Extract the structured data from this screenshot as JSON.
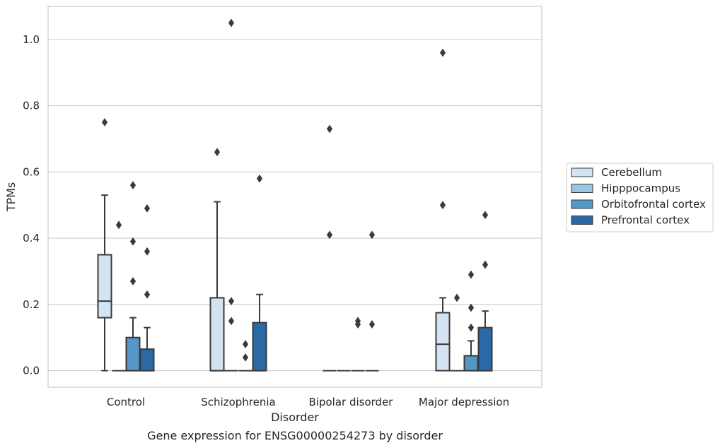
{
  "chart_data": {
    "type": "box",
    "xlabel": "Disorder",
    "ylabel": "TPMs",
    "caption": "Gene expression for ENSG00000254273 by disorder",
    "ylim": [
      -0.05,
      1.1
    ],
    "yticks": [
      "0.0",
      "0.2",
      "0.4",
      "0.6",
      "0.8",
      "1.0"
    ],
    "grid": "horizontal",
    "legend_position": "right-center",
    "categories": [
      "Control",
      "Schizophrenia",
      "Bipolar disorder",
      "Major depression"
    ],
    "series": [
      {
        "name": "Cerebellum",
        "color": "#d4e3f1",
        "boxes": [
          {
            "min": 0.0,
            "q1": 0.16,
            "median": 0.21,
            "q3": 0.35,
            "max": 0.53,
            "outliers": [
              0.75
            ]
          },
          {
            "min": 0.0,
            "q1": 0.0,
            "median": 0.0,
            "q3": 0.22,
            "max": 0.51,
            "outliers": [
              0.66
            ]
          },
          {
            "min": 0.0,
            "q1": 0.0,
            "median": 0.0,
            "q3": 0.0,
            "max": 0.0,
            "outliers": [
              0.73,
              0.41
            ]
          },
          {
            "min": 0.0,
            "q1": 0.0,
            "median": 0.08,
            "q3": 0.175,
            "max": 0.22,
            "outliers": [
              0.96,
              0.5
            ]
          }
        ]
      },
      {
        "name": "Hipppocampus",
        "color": "#9ac4e0",
        "boxes": [
          {
            "min": 0.0,
            "q1": 0.0,
            "median": 0.0,
            "q3": 0.0,
            "max": 0.0,
            "outliers": [
              0.44
            ]
          },
          {
            "min": 0.0,
            "q1": 0.0,
            "median": 0.0,
            "q3": 0.0,
            "max": 0.0,
            "outliers": [
              1.05,
              0.21,
              0.15
            ]
          },
          {
            "min": 0.0,
            "q1": 0.0,
            "median": 0.0,
            "q3": 0.0,
            "max": 0.0,
            "outliers": []
          },
          {
            "min": 0.0,
            "q1": 0.0,
            "median": 0.0,
            "q3": 0.0,
            "max": 0.0,
            "outliers": [
              0.22
            ]
          }
        ]
      },
      {
        "name": "Orbitofrontal cortex",
        "color": "#5597c6",
        "boxes": [
          {
            "min": 0.0,
            "q1": 0.0,
            "median": 0.0,
            "q3": 0.1,
            "max": 0.16,
            "outliers": [
              0.56,
              0.39,
              0.27
            ]
          },
          {
            "min": 0.0,
            "q1": 0.0,
            "median": 0.0,
            "q3": 0.0,
            "max": 0.0,
            "outliers": [
              0.08,
              0.04
            ]
          },
          {
            "min": 0.0,
            "q1": 0.0,
            "median": 0.0,
            "q3": 0.0,
            "max": 0.0,
            "outliers": [
              0.15,
              0.14
            ]
          },
          {
            "min": 0.0,
            "q1": 0.0,
            "median": 0.0,
            "q3": 0.045,
            "max": 0.09,
            "outliers": [
              0.29,
              0.19,
              0.13
            ]
          }
        ]
      },
      {
        "name": "Prefrontal cortex",
        "color": "#2a68a6",
        "boxes": [
          {
            "min": 0.0,
            "q1": 0.0,
            "median": 0.0,
            "q3": 0.065,
            "max": 0.13,
            "outliers": [
              0.49,
              0.36,
              0.23
            ]
          },
          {
            "min": 0.0,
            "q1": 0.0,
            "median": 0.0,
            "q3": 0.145,
            "max": 0.23,
            "outliers": [
              0.58
            ]
          },
          {
            "min": 0.0,
            "q1": 0.0,
            "median": 0.0,
            "q3": 0.0,
            "max": 0.0,
            "outliers": [
              0.41,
              0.14
            ]
          },
          {
            "min": 0.0,
            "q1": 0.0,
            "median": 0.0,
            "q3": 0.13,
            "max": 0.18,
            "outliers": [
              0.47,
              0.32
            ]
          }
        ]
      }
    ]
  }
}
